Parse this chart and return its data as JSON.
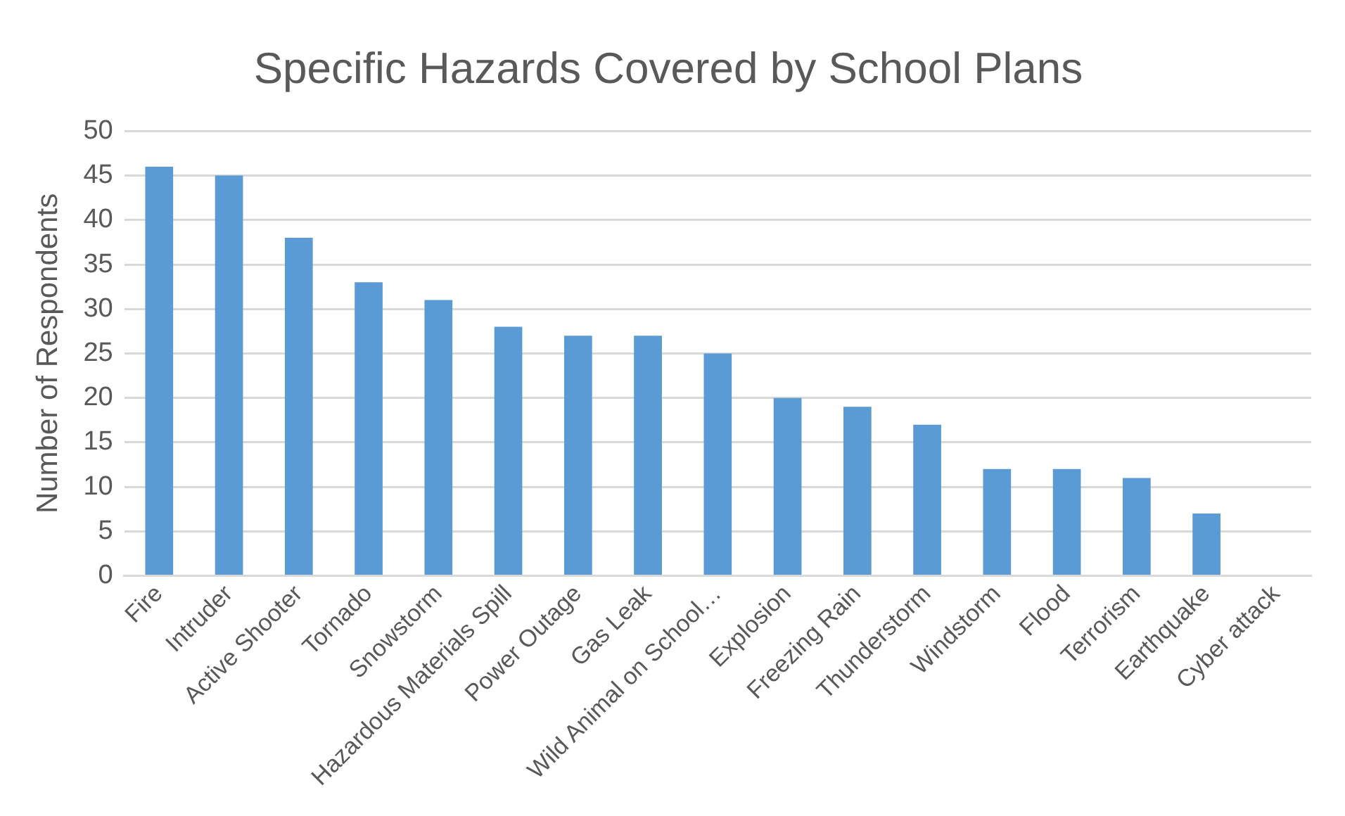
{
  "chart_data": {
    "type": "bar",
    "title": "Specific Hazards Covered by School Plans",
    "ylabel": "Number of Respondents",
    "categories": [
      "Fire",
      "Intruder",
      "Active Shooter",
      "Tornado",
      "Snowstorm",
      "Hazardous Materials Spill",
      "Power Outage",
      "Gas Leak",
      "Wild Animal on School…",
      "Explosion",
      "Freezing Rain",
      "Thunderstorm",
      "Windstorm",
      "Flood",
      "Terrorism",
      "Earthquake",
      "Cyber attack"
    ],
    "values": [
      46,
      45,
      38,
      33,
      31,
      28,
      27,
      27,
      25,
      20,
      19,
      17,
      12,
      12,
      11,
      7,
      0
    ],
    "color": "#5b9bd5",
    "ylim": [
      0,
      50
    ],
    "yticks": [
      0,
      5,
      10,
      15,
      20,
      25,
      30,
      35,
      40,
      45,
      50
    ],
    "grid": "y",
    "legend": false
  }
}
